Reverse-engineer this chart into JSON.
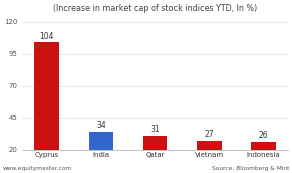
{
  "categories": [
    "Cyprus",
    "India",
    "Qatar",
    "Vietnam",
    "Indonesia"
  ],
  "values": [
    104,
    34,
    31,
    27,
    26
  ],
  "bar_colors": [
    "#cc1111",
    "#3366cc",
    "#cc1111",
    "#cc1111",
    "#cc1111"
  ],
  "title": "(Increase in market cap of stock indices YTD, In %)",
  "ylim": [
    20,
    125
  ],
  "yticks": [
    20,
    45,
    70,
    95,
    120
  ],
  "footer_left": "www.equitymaster.com",
  "footer_right": "Source: Bloomberg & Mint",
  "title_fontsize": 5.8,
  "label_fontsize": 5.5,
  "tick_fontsize": 5.0,
  "footer_fontsize": 4.2,
  "background_color": "#ffffff",
  "plot_bg_color": "#ffffff",
  "bar_width": 0.45,
  "grid_color": "#cccccc",
  "spine_color": "#aaaaaa"
}
